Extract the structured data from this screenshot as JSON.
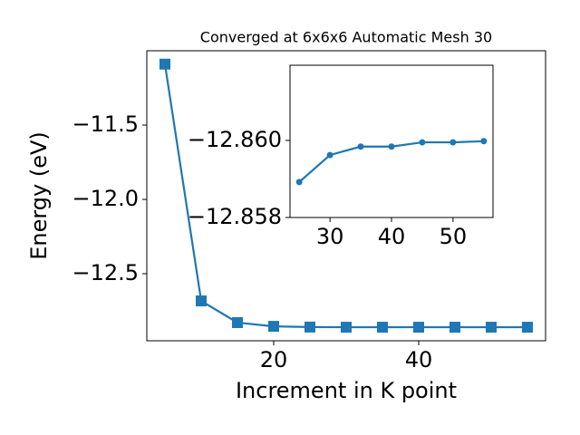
{
  "chart_data": [
    {
      "type": "line",
      "title": "Converged at 6x6x6 Automatic Mesh 30",
      "xlabel": "Increment in K point",
      "ylabel": "Energy (eV)",
      "x": [
        5,
        10,
        15,
        20,
        25,
        30,
        35,
        40,
        45,
        50,
        55
      ],
      "series": [
        {
          "color": "#1f77b4",
          "marker": "square",
          "values": [
            -11.09,
            -12.683,
            -12.829,
            -12.854,
            -12.859,
            -12.86,
            -12.86,
            -12.86,
            -12.86,
            -12.86,
            -12.86
          ]
        }
      ],
      "xlim": [
        2.5,
        57.5
      ],
      "ylim": [
        -12.951,
        -11.0
      ],
      "xticks": [
        20,
        40
      ],
      "yticks": [
        {
          "value": -11.5,
          "label": "−11.5"
        },
        {
          "value": -12.0,
          "label": "−12.0"
        },
        {
          "value": -12.5,
          "label": "−12.5"
        }
      ]
    },
    {
      "type": "line",
      "x": [
        25,
        30,
        35,
        40,
        45,
        50,
        55
      ],
      "series": [
        {
          "color": "#1f77b4",
          "marker": "circle",
          "values": [
            -12.85892,
            -12.85962,
            -12.85984,
            -12.85984,
            -12.85995,
            -12.85995,
            -12.85998
          ]
        }
      ],
      "xlim": [
        23.5,
        56.5
      ],
      "ylim": [
        -12.858,
        -12.86195
      ],
      "xticks": [
        30,
        40,
        50
      ],
      "yticks": [
        {
          "value": -12.86,
          "label": "−12.860"
        },
        {
          "value": -12.858,
          "label": "−12.858"
        }
      ]
    }
  ]
}
